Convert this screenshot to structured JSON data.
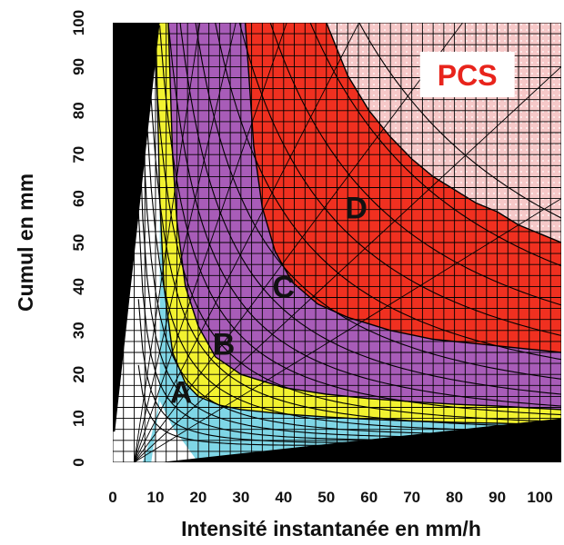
{
  "chart_data": {
    "type": "area",
    "xlabel": "Intensité instantanée en mm/h",
    "ylabel": "Cumul en mm",
    "xlim": [
      0,
      105
    ],
    "ylim": [
      0,
      100
    ],
    "xticks": [
      "0",
      "10",
      "20",
      "30",
      "40",
      "50",
      "60",
      "70",
      "80",
      "90",
      "100"
    ],
    "yticks": [
      "0",
      "10",
      "20",
      "30",
      "40",
      "50",
      "60",
      "70",
      "80",
      "90",
      "100"
    ],
    "grid": true,
    "zones": [
      {
        "label": "A",
        "color": "#7fd6e6",
        "label_x": 16,
        "label_y": 16
      },
      {
        "label": "B",
        "color": "#f2f230",
        "label_x": 26,
        "label_y": 27
      },
      {
        "label": "C",
        "color": "#a85cb8",
        "label_x": 40,
        "label_y": 40
      },
      {
        "label": "D",
        "color": "#f03020",
        "label_x": 57,
        "label_y": 58
      },
      {
        "label": "PCS",
        "color": "#f6c8c8",
        "label_x": 83,
        "label_y": 88
      }
    ],
    "zone_boundaries": [
      {
        "name": "A/B",
        "x": [
          10,
          11,
          12,
          14,
          17,
          20,
          25,
          30,
          40,
          50,
          60,
          70,
          80,
          90,
          105
        ],
        "y": [
          100,
          60,
          40,
          25,
          18,
          15,
          13,
          12,
          11,
          10.3,
          9.8,
          9.4,
          9.1,
          8.9,
          8.5
        ]
      },
      {
        "name": "B/C",
        "x": [
          13,
          14,
          15,
          17,
          20,
          24,
          30,
          40,
          50,
          60,
          70,
          80,
          90,
          105
        ],
        "y": [
          100,
          70,
          55,
          40,
          31,
          24,
          20,
          17,
          15.5,
          14.5,
          13.8,
          13.2,
          12.8,
          12
        ]
      },
      {
        "name": "C/D",
        "x": [
          31,
          33,
          35,
          38,
          42,
          48,
          55,
          65,
          75,
          85,
          95,
          105
        ],
        "y": [
          100,
          72,
          58,
          48,
          41,
          36,
          33,
          30,
          28,
          27,
          26,
          25
        ]
      },
      {
        "name": "D/PCS",
        "x": [
          50,
          55,
          60,
          65,
          70,
          75,
          80,
          85,
          90,
          95,
          100,
          105
        ],
        "y": [
          100,
          88,
          80,
          74,
          69,
          65,
          62,
          59,
          57,
          54,
          52,
          50
        ]
      }
    ],
    "excluded_regions": [
      {
        "color": "#000000",
        "x": [
          0,
          0,
          11,
          0.5
        ],
        "y": [
          7,
          100,
          100,
          7
        ]
      },
      {
        "color": "#000000",
        "x": [
          11,
          105,
          105
        ],
        "y": [
          0,
          0,
          10
        ]
      }
    ],
    "zone_colors": {
      "outside": "#ffffff",
      "grid": "#000000",
      "pcs_text": "#e8241c",
      "pcs_box": "#ffffff"
    }
  }
}
